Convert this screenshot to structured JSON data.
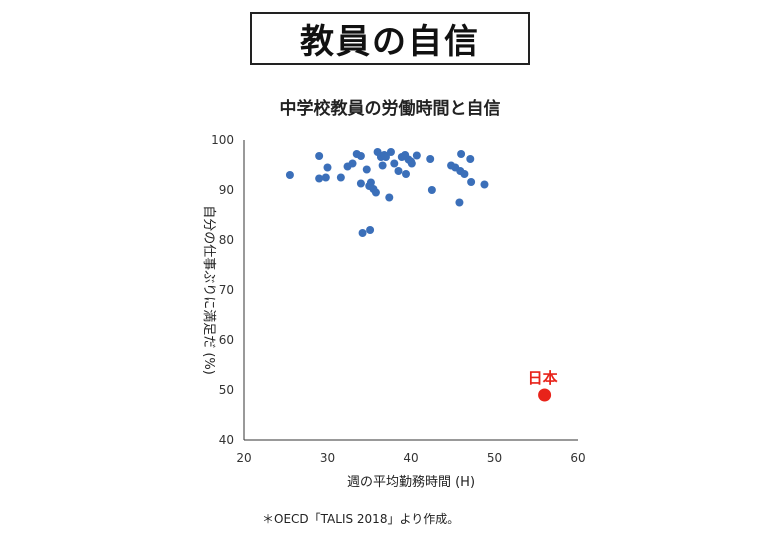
{
  "header": {
    "title": "教員の自信"
  },
  "footnote": "＊OECD「TALIS 2018」より作成。",
  "colors": {
    "series": "#3b6fb9",
    "highlight": "#e8231a"
  },
  "chart_data": {
    "type": "scatter",
    "title": "中学校教員の労働時間と自信",
    "xlabel": "週の平均勤務時間 (H)",
    "ylabel": "自分の仕事ぶりに満足だ (%)",
    "xlim": [
      20,
      60
    ],
    "ylim": [
      40,
      100
    ],
    "xticks": [
      20,
      30,
      40,
      50,
      60
    ],
    "yticks": [
      40,
      50,
      60,
      70,
      80,
      90,
      100
    ],
    "grid": false,
    "series": [
      {
        "points": [
          [
            25.5,
            93.0
          ],
          [
            29.0,
            96.8
          ],
          [
            29.0,
            92.3
          ],
          [
            29.8,
            92.5
          ],
          [
            30.0,
            94.5
          ],
          [
            31.6,
            92.5
          ],
          [
            32.4,
            94.7
          ],
          [
            33.0,
            95.3
          ],
          [
            33.5,
            97.2
          ],
          [
            34.0,
            96.8
          ],
          [
            34.7,
            94.1
          ],
          [
            35.2,
            91.5
          ],
          [
            35.5,
            90.2
          ],
          [
            35.8,
            89.5
          ],
          [
            36.0,
            97.6
          ],
          [
            36.4,
            96.6
          ],
          [
            36.6,
            94.9
          ],
          [
            36.8,
            97.0
          ],
          [
            37.0,
            96.6
          ],
          [
            37.6,
            97.6
          ],
          [
            38.0,
            95.3
          ],
          [
            38.5,
            93.8
          ],
          [
            38.9,
            96.6
          ],
          [
            39.3,
            97.0
          ],
          [
            39.4,
            93.2
          ],
          [
            39.7,
            96.1
          ],
          [
            40.0,
            95.7
          ],
          [
            40.1,
            95.3
          ],
          [
            40.7,
            96.9
          ],
          [
            42.3,
            96.2
          ],
          [
            42.5,
            90.0
          ],
          [
            44.8,
            94.9
          ],
          [
            45.3,
            94.5
          ],
          [
            45.9,
            93.8
          ],
          [
            46.0,
            97.2
          ],
          [
            46.4,
            93.2
          ],
          [
            47.1,
            96.2
          ],
          [
            47.2,
            91.6
          ],
          [
            48.8,
            91.1
          ],
          [
            34.0,
            91.3
          ],
          [
            35.0,
            90.8
          ],
          [
            37.4,
            88.5
          ],
          [
            45.8,
            87.5
          ],
          [
            34.2,
            81.4
          ],
          [
            35.1,
            82.0
          ]
        ]
      }
    ],
    "highlight": {
      "label": "日本",
      "x": 56.0,
      "y": 49.0
    }
  }
}
